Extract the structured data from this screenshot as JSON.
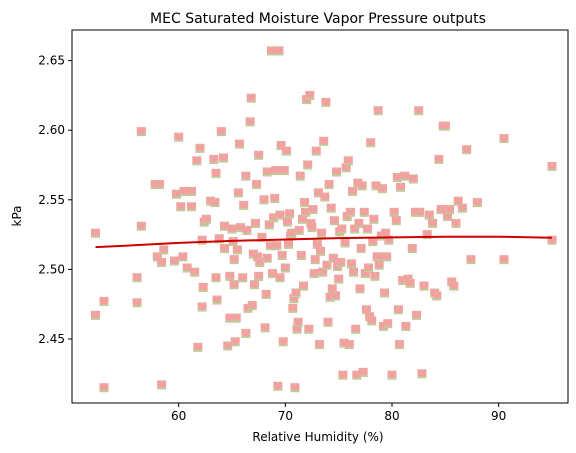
{
  "chart_data": {
    "type": "scatter",
    "title": "MEC Saturated Moisture Vapor Pressure outputs",
    "xlabel": "Relative Humidity (%)",
    "ylabel": "kPa",
    "xlim": [
      50.0,
      96.5
    ],
    "ylim": [
      2.404,
      2.672
    ],
    "xticks": [
      60,
      70,
      80,
      90
    ],
    "yticks": [
      2.45,
      2.5,
      2.55,
      2.6,
      2.65
    ],
    "grid": false,
    "legend": "none",
    "colors": {
      "triangle_marker": "#90ee90",
      "square_marker": "#f4a0a0",
      "trend_line": "#cc0000"
    },
    "series": [
      {
        "marker": "triangle",
        "color": "#90ee90",
        "points": [
          [
            52.2,
            2.526
          ],
          [
            52.2,
            2.467
          ],
          [
            53.0,
            2.477
          ],
          [
            53.0,
            2.415
          ],
          [
            56.1,
            2.494
          ],
          [
            56.1,
            2.476
          ],
          [
            56.5,
            2.599
          ],
          [
            56.5,
            2.531
          ],
          [
            57.8,
            2.561
          ],
          [
            58.2,
            2.561
          ],
          [
            58.0,
            2.509
          ],
          [
            58.4,
            2.505
          ],
          [
            58.6,
            2.514
          ],
          [
            58.4,
            2.417
          ],
          [
            59.6,
            2.506
          ],
          [
            59.8,
            2.554
          ],
          [
            60.0,
            2.595
          ],
          [
            60.2,
            2.545
          ],
          [
            60.5,
            2.556
          ],
          [
            60.4,
            2.509
          ],
          [
            60.8,
            2.501
          ],
          [
            61.2,
            2.556
          ],
          [
            61.2,
            2.545
          ],
          [
            61.5,
            2.498
          ],
          [
            61.7,
            2.578
          ],
          [
            61.8,
            2.444
          ],
          [
            62.0,
            2.587
          ],
          [
            62.2,
            2.521
          ],
          [
            62.2,
            2.473
          ],
          [
            62.3,
            2.487
          ],
          [
            62.4,
            2.534
          ],
          [
            62.6,
            2.536
          ],
          [
            63.0,
            2.549
          ],
          [
            63.3,
            2.579
          ],
          [
            63.4,
            2.548
          ],
          [
            63.5,
            2.569
          ],
          [
            63.6,
            2.478
          ],
          [
            63.5,
            2.494
          ],
          [
            63.8,
            2.522
          ],
          [
            64.0,
            2.599
          ],
          [
            64.2,
            2.58
          ],
          [
            64.3,
            2.531
          ],
          [
            64.3,
            2.515
          ],
          [
            64.6,
            2.445
          ],
          [
            64.8,
            2.495
          ],
          [
            64.8,
            2.465
          ],
          [
            65.0,
            2.529
          ],
          [
            65.1,
            2.52
          ],
          [
            65.2,
            2.507
          ],
          [
            65.2,
            2.489
          ],
          [
            65.3,
            2.448
          ],
          [
            65.4,
            2.465
          ],
          [
            65.5,
            2.514
          ],
          [
            65.6,
            2.555
          ],
          [
            65.7,
            2.59
          ],
          [
            65.8,
            2.53
          ],
          [
            66.0,
            2.494
          ],
          [
            66.1,
            2.546
          ],
          [
            66.3,
            2.567
          ],
          [
            66.3,
            2.454
          ],
          [
            66.4,
            2.528
          ],
          [
            66.5,
            2.472
          ],
          [
            66.7,
            2.606
          ],
          [
            66.8,
            2.623
          ],
          [
            66.9,
            2.474
          ],
          [
            67.0,
            2.511
          ],
          [
            67.1,
            2.489
          ],
          [
            67.2,
            2.533
          ],
          [
            67.3,
            2.561
          ],
          [
            67.4,
            2.509
          ],
          [
            67.5,
            2.582
          ],
          [
            67.5,
            2.495
          ],
          [
            67.6,
            2.505
          ],
          [
            67.8,
            2.523
          ],
          [
            68.0,
            2.55
          ],
          [
            68.1,
            2.458
          ],
          [
            68.2,
            2.482
          ],
          [
            68.3,
            2.508
          ],
          [
            68.3,
            2.57
          ],
          [
            68.5,
            2.532
          ],
          [
            68.6,
            2.517
          ],
          [
            68.7,
            2.657
          ],
          [
            68.8,
            2.497
          ],
          [
            68.9,
            2.537
          ],
          [
            69.0,
            2.551
          ],
          [
            69.1,
            2.571
          ],
          [
            69.2,
            2.517
          ],
          [
            69.3,
            2.416
          ],
          [
            69.4,
            2.657
          ],
          [
            69.5,
            2.494
          ],
          [
            69.5,
            2.539
          ],
          [
            69.6,
            2.589
          ],
          [
            69.7,
            2.51
          ],
          [
            69.8,
            2.448
          ],
          [
            69.9,
            2.571
          ],
          [
            70.0,
            2.501
          ],
          [
            70.1,
            2.585
          ],
          [
            70.2,
            2.534
          ],
          [
            70.3,
            2.518
          ],
          [
            70.4,
            2.54
          ],
          [
            70.5,
            2.524
          ],
          [
            70.6,
            2.526
          ],
          [
            70.7,
            2.472
          ],
          [
            70.8,
            2.479
          ],
          [
            70.9,
            2.415
          ],
          [
            71.0,
            2.483
          ],
          [
            71.1,
            2.457
          ],
          [
            71.2,
            2.462
          ],
          [
            71.3,
            2.528
          ],
          [
            71.4,
            2.567
          ],
          [
            71.5,
            2.51
          ],
          [
            71.6,
            2.536
          ],
          [
            71.7,
            2.488
          ],
          [
            71.8,
            2.548
          ],
          [
            71.9,
            2.541
          ],
          [
            72.0,
            2.622
          ],
          [
            72.1,
            2.575
          ],
          [
            72.2,
            2.457
          ],
          [
            72.3,
            2.625
          ],
          [
            72.4,
            2.533
          ],
          [
            72.5,
            2.53
          ],
          [
            72.6,
            2.543
          ],
          [
            72.7,
            2.497
          ],
          [
            72.8,
            2.507
          ],
          [
            72.9,
            2.585
          ],
          [
            73.0,
            2.518
          ],
          [
            73.1,
            2.555
          ],
          [
            73.2,
            2.446
          ],
          [
            73.3,
            2.513
          ],
          [
            73.4,
            2.526
          ],
          [
            73.5,
            2.498
          ],
          [
            73.6,
            2.592
          ],
          [
            73.7,
            2.552
          ],
          [
            73.8,
            2.62
          ],
          [
            73.9,
            2.503
          ],
          [
            74.0,
            2.462
          ],
          [
            74.1,
            2.561
          ],
          [
            74.2,
            2.48
          ],
          [
            74.3,
            2.544
          ],
          [
            74.4,
            2.486
          ],
          [
            74.5,
            2.508
          ],
          [
            74.6,
            2.535
          ],
          [
            74.7,
            2.481
          ],
          [
            74.8,
            2.57
          ],
          [
            74.9,
            2.502
          ],
          [
            75.0,
            2.493
          ],
          [
            75.1,
            2.527
          ],
          [
            75.2,
            2.505
          ],
          [
            75.3,
            2.529
          ],
          [
            75.4,
            2.424
          ],
          [
            75.5,
            2.447
          ],
          [
            75.6,
            2.519
          ],
          [
            75.7,
            2.573
          ],
          [
            75.8,
            2.538
          ],
          [
            75.9,
            2.578
          ],
          [
            76.0,
            2.446
          ],
          [
            76.1,
            2.541
          ],
          [
            76.2,
            2.504
          ],
          [
            76.3,
            2.556
          ],
          [
            76.4,
            2.498
          ],
          [
            76.5,
            2.529
          ],
          [
            76.6,
            2.457
          ],
          [
            76.7,
            2.424
          ],
          [
            76.8,
            2.562
          ],
          [
            76.9,
            2.533
          ],
          [
            77.0,
            2.486
          ],
          [
            77.1,
            2.515
          ],
          [
            77.2,
            2.56
          ],
          [
            77.3,
            2.426
          ],
          [
            77.4,
            2.541
          ],
          [
            77.5,
            2.497
          ],
          [
            77.6,
            2.471
          ],
          [
            77.7,
            2.529
          ],
          [
            77.8,
            2.501
          ],
          [
            77.9,
            2.466
          ],
          [
            78.0,
            2.591
          ],
          [
            78.1,
            2.463
          ],
          [
            78.2,
            2.52
          ],
          [
            78.3,
            2.536
          ],
          [
            78.4,
            2.495
          ],
          [
            78.5,
            2.56
          ],
          [
            78.6,
            2.509
          ],
          [
            78.7,
            2.614
          ],
          [
            78.8,
            2.503
          ],
          [
            78.9,
            2.509
          ],
          [
            79.0,
            2.524
          ],
          [
            79.1,
            2.558
          ],
          [
            79.2,
            2.459
          ],
          [
            79.3,
            2.483
          ],
          [
            79.4,
            2.526
          ],
          [
            79.5,
            2.509
          ],
          [
            79.6,
            2.461
          ],
          [
            79.7,
            2.521
          ],
          [
            80.0,
            2.424
          ],
          [
            80.2,
            2.541
          ],
          [
            80.4,
            2.535
          ],
          [
            80.5,
            2.566
          ],
          [
            80.6,
            2.471
          ],
          [
            80.7,
            2.446
          ],
          [
            80.8,
            2.559
          ],
          [
            81.0,
            2.492
          ],
          [
            81.2,
            2.567
          ],
          [
            81.3,
            2.459
          ],
          [
            81.5,
            2.493
          ],
          [
            81.7,
            2.49
          ],
          [
            81.9,
            2.515
          ],
          [
            82.0,
            2.565
          ],
          [
            82.2,
            2.541
          ],
          [
            82.3,
            2.467
          ],
          [
            82.5,
            2.614
          ],
          [
            82.6,
            2.541
          ],
          [
            82.8,
            2.425
          ],
          [
            83.0,
            2.488
          ],
          [
            83.3,
            2.525
          ],
          [
            83.5,
            2.539
          ],
          [
            83.8,
            2.533
          ],
          [
            84.0,
            2.483
          ],
          [
            84.2,
            2.481
          ],
          [
            84.4,
            2.579
          ],
          [
            84.6,
            2.543
          ],
          [
            84.8,
            2.603
          ],
          [
            85.0,
            2.603
          ],
          [
            85.2,
            2.538
          ],
          [
            85.4,
            2.543
          ],
          [
            85.6,
            2.491
          ],
          [
            85.8,
            2.488
          ],
          [
            86.0,
            2.533
          ],
          [
            86.2,
            2.549
          ],
          [
            86.6,
            2.544
          ],
          [
            87.0,
            2.586
          ],
          [
            87.4,
            2.507
          ],
          [
            88.0,
            2.548
          ],
          [
            90.5,
            2.594
          ],
          [
            90.5,
            2.507
          ],
          [
            95.0,
            2.574
          ],
          [
            95.0,
            2.521
          ]
        ]
      },
      {
        "marker": "square",
        "color": "#f4a0a0",
        "points": "same positions as triangle series"
      }
    ],
    "trend_line": {
      "color": "#cc0000",
      "x": [
        52.2,
        55,
        60,
        65,
        70,
        75,
        80,
        85,
        90,
        95
      ],
      "y": [
        2.516,
        2.517,
        2.519,
        2.5205,
        2.5215,
        2.5225,
        2.523,
        2.5235,
        2.5235,
        2.5228
      ]
    }
  }
}
